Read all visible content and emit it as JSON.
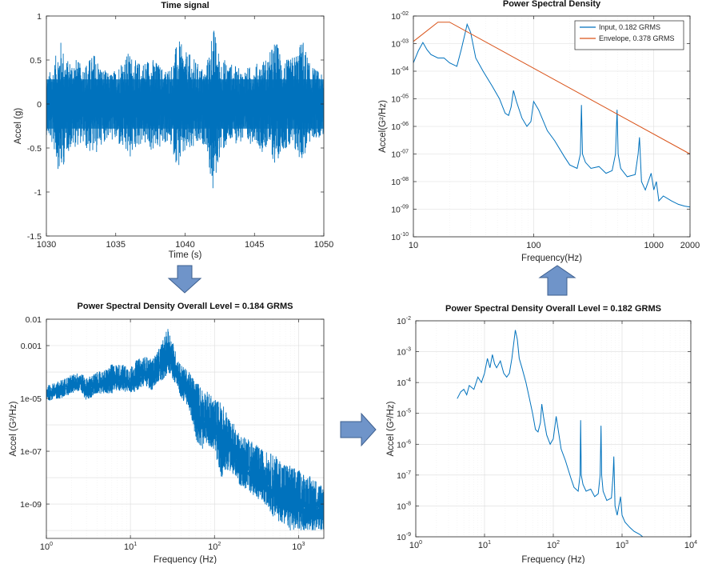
{
  "chart_data": [
    {
      "id": "time",
      "type": "line",
      "title": "Time signal",
      "xlabel": "Time (s)",
      "ylabel": "Accel  (g)",
      "xlim": [
        1030,
        1050
      ],
      "ylim": [
        -1.5,
        1
      ],
      "x_scale": "linear",
      "y_scale": "linear",
      "grid": false,
      "xticks": [
        1030,
        1035,
        1040,
        1045,
        1050
      ],
      "xtick_labels": [
        "1030",
        "1035",
        "1040",
        "1045",
        "1050"
      ],
      "yticks": [
        -1.5,
        -1,
        -0.5,
        0,
        0.5,
        1
      ],
      "ytick_labels": [
        "-1.5",
        "-1",
        "-0.5",
        "0",
        "0.5",
        "1"
      ],
      "color": "#0072BD",
      "series": [
        {
          "values_desc": "random vibration record",
          "x": [
            1030,
            1030.5,
            1031,
            1031.5,
            1032,
            1032.5,
            1033,
            1033.5,
            1034,
            1034.5,
            1035,
            1035.5,
            1036,
            1036.5,
            1037,
            1037.5,
            1038,
            1038.5,
            1039,
            1039.5,
            1040,
            1040.5,
            1041,
            1041.5,
            1042,
            1042.5,
            1043,
            1043.5,
            1044,
            1044.5,
            1045,
            1045.5,
            1046,
            1046.5,
            1047,
            1047.5,
            1048,
            1048.5,
            1049,
            1049.5,
            1050
          ],
          "upper": [
            0.3,
            0.45,
            0.75,
            0.5,
            0.55,
            0.45,
            0.5,
            0.6,
            0.42,
            0.35,
            0.4,
            0.55,
            0.6,
            0.48,
            0.5,
            0.55,
            0.48,
            0.4,
            0.45,
            0.75,
            0.6,
            0.55,
            0.45,
            0.4,
            0.93,
            0.55,
            0.5,
            0.45,
            0.4,
            0.42,
            0.45,
            0.5,
            0.55,
            0.75,
            0.55,
            0.5,
            0.6,
            0.75,
            0.45,
            0.4,
            0.3
          ],
          "lower": [
            -0.35,
            -0.5,
            -0.85,
            -0.55,
            -0.5,
            -0.45,
            -0.55,
            -0.6,
            -0.45,
            -0.4,
            -0.45,
            -0.55,
            -0.65,
            -0.5,
            -0.45,
            -0.55,
            -0.55,
            -0.45,
            -0.5,
            -0.75,
            -0.6,
            -0.55,
            -0.5,
            -0.45,
            -1.07,
            -0.6,
            -0.5,
            -0.45,
            -0.45,
            -0.5,
            -0.4,
            -0.55,
            -0.5,
            -0.72,
            -0.5,
            -0.55,
            -0.6,
            -0.65,
            -0.45,
            -0.4,
            -0.35
          ]
        }
      ]
    },
    {
      "id": "psd_envelope",
      "type": "line",
      "title": "Power Spectral Density",
      "xlabel": "Frequency(Hz)",
      "ylabel": "Accel(G²/Hz)",
      "xlim": [
        10,
        2000
      ],
      "ylim": [
        1e-10,
        0.01
      ],
      "x_scale": "log",
      "y_scale": "log",
      "grid": true,
      "legend_position": "top-right",
      "xticks": [
        10,
        100,
        1000,
        2000
      ],
      "xtick_labels": [
        "10",
        "100",
        "1000",
        "2000"
      ],
      "yticks": [
        1e-10,
        1e-09,
        1e-08,
        1e-07,
        1e-06,
        1e-05,
        0.0001,
        0.001,
        0.01
      ],
      "ytick_labels": [
        [
          "10",
          "-10"
        ],
        [
          "10",
          "-09"
        ],
        [
          "10",
          "-08"
        ],
        [
          "10",
          "-07"
        ],
        [
          "10",
          "-06"
        ],
        [
          "10",
          "-05"
        ],
        [
          "10",
          "-04"
        ],
        [
          "10",
          "-03"
        ],
        [
          "10",
          "-02"
        ]
      ],
      "series": [
        {
          "name": "Input,  0.182 GRMS",
          "color": "#0072BD",
          "x": [
            10,
            11,
            12,
            13,
            14,
            16,
            18,
            20,
            23,
            25,
            27,
            28,
            30,
            33,
            38,
            45,
            52,
            58,
            62,
            65,
            68,
            72,
            80,
            88,
            95,
            100,
            110,
            130,
            150,
            180,
            200,
            230,
            245,
            250,
            255,
            270,
            300,
            350,
            400,
            450,
            480,
            495,
            505,
            530,
            600,
            700,
            740,
            760,
            790,
            850,
            950,
            1000,
            1050,
            1100,
            1200,
            1400,
            1600,
            1800,
            2000
          ],
          "y": [
            0.0002,
            0.00055,
            0.0011,
            0.0006,
            0.0004,
            0.0003,
            0.0003,
            0.0002,
            0.00015,
            0.0006,
            0.0025,
            0.005,
            0.0025,
            0.0003,
            0.0001,
            3e-05,
            1e-05,
            3e-06,
            2.5e-06,
            5e-06,
            2e-05,
            8e-06,
            2e-06,
            1e-06,
            1.5e-06,
            8e-06,
            4e-06,
            7e-07,
            3e-07,
            8e-08,
            4e-08,
            3e-08,
            1e-07,
            6e-06,
            1e-07,
            5e-08,
            3e-08,
            3.5e-08,
            2e-08,
            2.5e-08,
            1e-07,
            4e-06,
            1e-07,
            3e-08,
            1.5e-08,
            1.8e-08,
            1e-07,
            4e-07,
            1e-08,
            5e-09,
            2e-08,
            5e-09,
            1e-08,
            2e-09,
            3e-09,
            2e-09,
            1.5e-09,
            1.3e-09,
            1.2e-09
          ]
        },
        {
          "name": "Envelope,  0.378 GRMS",
          "color": "#D95319",
          "x": [
            10,
            16,
            20,
            2000
          ],
          "y": [
            0.0012,
            0.006,
            0.006,
            1e-07
          ]
        }
      ]
    },
    {
      "id": "psd_raw",
      "type": "line",
      "title": "Power Spectral Density  Overall Level =  0.184 GRMS",
      "xlabel": "Frequency (Hz)",
      "ylabel": "Accel (G²/Hz)",
      "xlim": [
        1,
        2000
      ],
      "ylim": [
        5e-11,
        0.01
      ],
      "x_scale": "log",
      "y_scale": "log",
      "grid": true,
      "xticks": [
        1,
        10,
        100,
        1000
      ],
      "xtick_labels": [
        [
          "10",
          "0"
        ],
        [
          "10",
          "1"
        ],
        [
          "10",
          "2"
        ],
        [
          "10",
          "3"
        ]
      ],
      "yticks": [
        1e-09,
        1e-07,
        1e-05,
        0.001,
        0.01
      ],
      "ytick_labels": [
        "1e-09",
        "1e-07",
        "1e-05",
        "0.001",
        "0.01"
      ],
      "color": "#0072BD",
      "series": [
        {
          "values_desc": "raw noisy PSD band",
          "x": [
            1,
            1.5,
            2,
            2.5,
            3,
            4,
            5,
            6,
            8,
            10,
            12,
            15,
            18,
            20,
            22,
            25,
            28,
            30,
            35,
            40,
            50,
            60,
            70,
            80,
            100,
            120,
            150,
            200,
            300,
            400,
            500,
            600,
            800,
            1000,
            1500,
            2000
          ],
          "upper": [
            3e-05,
            5e-05,
            8e-05,
            0.0001,
            6e-05,
            0.0001,
            0.00012,
            0.0002,
            0.0002,
            0.00015,
            0.0003,
            0.0004,
            0.0003,
            0.0005,
            0.0008,
            0.002,
            0.005,
            0.003,
            0.0005,
            0.0002,
            0.0001,
            5e-05,
            3e-05,
            2e-05,
            1e-05,
            8e-06,
            2e-06,
            5e-07,
            2e-07,
            1e-07,
            8e-08,
            5e-08,
            3e-08,
            2e-08,
            1e-08,
            5e-09
          ],
          "lower": [
            8e-06,
            1e-05,
            1.5e-05,
            2e-05,
            8e-06,
            1.5e-05,
            1.5e-05,
            1.5e-05,
            2e-05,
            1.5e-05,
            2e-05,
            3e-05,
            2e-05,
            3e-05,
            4e-05,
            5e-05,
            0.0001,
            8e-05,
            3e-05,
            1e-05,
            4e-06,
            3e-07,
            1e-07,
            2e-07,
            1e-07,
            1e-08,
            2e-08,
            5e-09,
            2e-09,
            1e-09,
            3e-10,
            2e-10,
            1e-10,
            1e-10,
            1e-10,
            1e-10
          ]
        }
      ]
    },
    {
      "id": "psd_smoothed",
      "type": "line",
      "title": "Power Spectral Density  Overall Level =  0.182 GRMS",
      "xlabel": "Frequency (Hz)",
      "ylabel": "Accel (G²/Hz)",
      "xlim": [
        1,
        10000
      ],
      "ylim": [
        1e-09,
        0.01
      ],
      "x_scale": "log",
      "y_scale": "log",
      "grid": true,
      "xticks": [
        1,
        10,
        100,
        1000,
        10000
      ],
      "xtick_labels": [
        [
          "10",
          "0"
        ],
        [
          "10",
          "1"
        ],
        [
          "10",
          "2"
        ],
        [
          "10",
          "3"
        ],
        [
          "10",
          "4"
        ]
      ],
      "yticks": [
        1e-09,
        1e-08,
        1e-07,
        1e-06,
        1e-05,
        0.0001,
        0.001,
        0.01
      ],
      "ytick_labels": [
        [
          "10",
          "-9"
        ],
        [
          "10",
          "-8"
        ],
        [
          "10",
          "-7"
        ],
        [
          "10",
          "-6"
        ],
        [
          "10",
          "-5"
        ],
        [
          "10",
          "-4"
        ],
        [
          "10",
          "-3"
        ],
        [
          "10",
          "-2"
        ]
      ],
      "color": "#0072BD",
      "series": [
        {
          "x": [
            4,
            4.5,
            5,
            5.5,
            6,
            7,
            8,
            9,
            10,
            11,
            12,
            13,
            14,
            15,
            17,
            19,
            21,
            23,
            25,
            27,
            28,
            30,
            32,
            35,
            40,
            45,
            50,
            55,
            60,
            65,
            68,
            72,
            80,
            90,
            100,
            110,
            130,
            150,
            180,
            200,
            230,
            245,
            250,
            255,
            270,
            300,
            350,
            400,
            450,
            480,
            495,
            505,
            530,
            600,
            700,
            740,
            760,
            790,
            850,
            950,
            1000,
            1100,
            1300,
            1500,
            1800,
            2000
          ],
          "y": [
            3e-05,
            5e-05,
            6e-05,
            4e-05,
            8e-05,
            6e-05,
            0.00015,
            0.0001,
            0.0002,
            0.0006,
            0.0003,
            0.0008,
            0.0004,
            0.0003,
            0.0005,
            0.0002,
            0.00015,
            0.0002,
            0.0006,
            0.0025,
            0.005,
            0.0025,
            0.0006,
            0.0003,
            0.0001,
            3e-05,
            1e-05,
            3e-06,
            2.5e-06,
            5e-06,
            2e-05,
            8e-06,
            2e-06,
            1e-06,
            1.5e-06,
            8e-06,
            7e-07,
            3e-07,
            8e-08,
            4e-08,
            3e-08,
            1e-07,
            6e-06,
            1e-07,
            5e-08,
            3e-08,
            3.5e-08,
            2e-08,
            2.5e-08,
            1e-07,
            4e-06,
            1e-07,
            3e-08,
            1.5e-08,
            1.8e-08,
            1e-07,
            4e-07,
            1e-08,
            5e-09,
            2e-08,
            5e-09,
            3e-09,
            2e-09,
            1.5e-09,
            1.2e-09,
            1e-09
          ]
        }
      ]
    }
  ],
  "arrows": {
    "color": "#6f94c9",
    "stroke": "#3d5f8f"
  }
}
